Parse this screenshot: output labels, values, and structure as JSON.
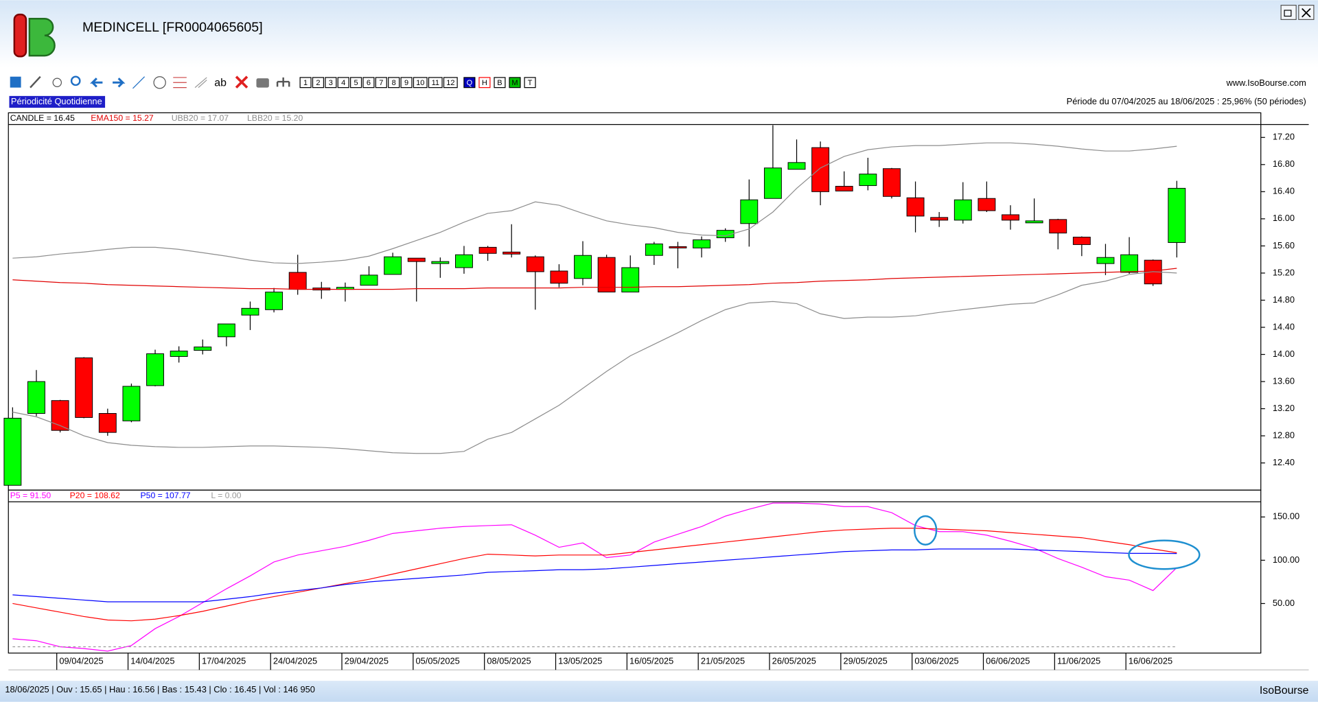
{
  "window": {
    "title": "MEDINCELL [FR0004065605]",
    "site": "www.IsoBourse.com",
    "periodicity": "Périodicité Quotidienne",
    "period": "Période du 07/04/2025 au 18/06/2025 : 25,96% (50 périodes)",
    "status": "18/06/2025 | Ouv : 15.65 | Hau : 16.56 | Bas : 15.43 | Clo : 16.45 | Vol : 146 950",
    "brand": "IsoBourse"
  },
  "toolbar": {
    "number_buttons": [
      "1",
      "2",
      "3",
      "4",
      "5",
      "6",
      "7",
      "8",
      "9",
      "10",
      "11",
      "12"
    ],
    "letter_buttons": [
      "Q",
      "H",
      "B",
      "M",
      "T"
    ]
  },
  "chart_data": [
    {
      "type": "candlestick",
      "ylim": [
        12.0,
        17.39
      ],
      "grid": false,
      "axis_side": "right",
      "yticks": [
        {
          "value": 12.4,
          "label": "12.40"
        },
        {
          "value": 12.8,
          "label": "12.80"
        },
        {
          "value": 13.2,
          "label": "13.20"
        },
        {
          "value": 13.6,
          "label": "13.60"
        },
        {
          "value": 14.0,
          "label": "14.00"
        },
        {
          "value": 14.4,
          "label": "14.40"
        },
        {
          "value": 14.8,
          "label": "14.80"
        },
        {
          "value": 15.2,
          "label": "15.20"
        },
        {
          "value": 15.6,
          "label": "15.60"
        },
        {
          "value": 16.0,
          "label": "16.00"
        },
        {
          "value": 16.4,
          "label": "16.40"
        },
        {
          "value": 16.8,
          "label": "16.80"
        },
        {
          "value": 17.2,
          "label": "17.20"
        }
      ],
      "series": [
        {
          "name": "CANDLE = 16.45",
          "type": "candlestick",
          "color": "#000000",
          "up_color": "#00ff00",
          "down_color": "#ff0000",
          "open": [
            12.07,
            13.13,
            13.32,
            13.95,
            13.13,
            13.02,
            13.54,
            13.97,
            14.06,
            14.26,
            14.58,
            14.66,
            15.21,
            14.98,
            14.96,
            15.02,
            15.18,
            15.42,
            15.34,
            15.28,
            15.58,
            15.51,
            15.44,
            15.23,
            15.12,
            15.43,
            14.92,
            15.46,
            15.59,
            15.57,
            15.72,
            15.93,
            16.3,
            16.73,
            17.05,
            16.48,
            16.49,
            16.74,
            16.31,
            16.02,
            15.98,
            16.3,
            16.06,
            15.94,
            15.99,
            15.73,
            15.34,
            15.21,
            15.39,
            15.65
          ],
          "high": [
            13.22,
            13.77,
            13.33,
            13.96,
            13.2,
            13.57,
            14.07,
            14.12,
            14.22,
            14.45,
            14.78,
            14.98,
            15.47,
            15.07,
            15.06,
            15.3,
            15.5,
            15.42,
            15.43,
            15.6,
            15.6,
            15.92,
            15.46,
            15.33,
            15.67,
            15.47,
            15.46,
            15.66,
            15.66,
            15.74,
            15.86,
            16.58,
            17.38,
            17.17,
            17.14,
            16.7,
            16.9,
            16.75,
            16.55,
            16.1,
            16.54,
            16.55,
            16.2,
            16.3,
            16.0,
            15.74,
            15.63,
            15.73,
            15.4,
            16.56
          ],
          "low": [
            12.07,
            13.09,
            12.85,
            13.06,
            12.8,
            13.0,
            13.53,
            13.88,
            14.0,
            14.12,
            14.36,
            14.62,
            14.88,
            14.82,
            14.78,
            15.02,
            15.18,
            14.78,
            15.13,
            15.19,
            15.38,
            15.43,
            14.66,
            14.99,
            15.02,
            14.92,
            14.92,
            15.32,
            15.27,
            15.43,
            15.66,
            15.59,
            16.3,
            16.73,
            16.2,
            16.41,
            16.42,
            16.3,
            15.8,
            15.88,
            15.93,
            16.1,
            15.84,
            15.94,
            15.55,
            15.45,
            15.17,
            15.19,
            15.01,
            15.43
          ],
          "close": [
            13.06,
            13.6,
            12.88,
            13.07,
            12.85,
            13.53,
            14.01,
            14.05,
            14.11,
            14.45,
            14.68,
            14.92,
            14.96,
            14.95,
            14.99,
            15.17,
            15.44,
            15.37,
            15.37,
            15.47,
            15.49,
            15.48,
            15.22,
            15.05,
            15.46,
            14.92,
            15.28,
            15.63,
            15.57,
            15.69,
            15.83,
            16.28,
            16.75,
            16.83,
            16.4,
            16.41,
            16.66,
            16.33,
            16.04,
            15.98,
            16.28,
            16.12,
            15.98,
            15.97,
            15.79,
            15.62,
            15.43,
            15.47,
            15.04,
            16.45
          ]
        },
        {
          "name": "EMA150 = 15.27",
          "color": "#e00000",
          "values": [
            15.1,
            15.08,
            15.06,
            15.05,
            15.03,
            15.02,
            15.01,
            15.0,
            14.99,
            14.98,
            14.97,
            14.97,
            14.96,
            14.96,
            14.96,
            14.96,
            14.96,
            14.97,
            14.97,
            14.97,
            14.98,
            14.98,
            14.98,
            14.98,
            14.99,
            14.99,
            14.99,
            15.0,
            15.0,
            15.01,
            15.02,
            15.03,
            15.05,
            15.06,
            15.08,
            15.09,
            15.1,
            15.12,
            15.13,
            15.14,
            15.15,
            15.16,
            15.17,
            15.18,
            15.19,
            15.2,
            15.21,
            15.22,
            15.23,
            15.27
          ]
        },
        {
          "name": "UBB20 = 17.07",
          "color": "#8c8c8c",
          "values": [
            15.42,
            15.44,
            15.48,
            15.51,
            15.55,
            15.58,
            15.58,
            15.55,
            15.5,
            15.45,
            15.39,
            15.35,
            15.34,
            15.36,
            15.39,
            15.45,
            15.56,
            15.68,
            15.8,
            15.95,
            16.08,
            16.12,
            16.25,
            16.2,
            16.08,
            15.97,
            15.91,
            15.87,
            15.8,
            15.76,
            15.75,
            15.85,
            16.1,
            16.45,
            16.75,
            16.92,
            17.02,
            17.06,
            17.08,
            17.08,
            17.1,
            17.12,
            17.12,
            17.1,
            17.07,
            17.03,
            17.0,
            17.0,
            17.03,
            17.07
          ]
        },
        {
          "name": "LBB20 = 15.20",
          "color": "#8c8c8c",
          "values": [
            13.15,
            13.08,
            12.95,
            12.8,
            12.7,
            12.66,
            12.64,
            12.63,
            12.63,
            12.64,
            12.65,
            12.65,
            12.64,
            12.63,
            12.61,
            12.58,
            12.55,
            12.54,
            12.54,
            12.57,
            12.75,
            12.85,
            13.05,
            13.25,
            13.5,
            13.75,
            13.98,
            14.15,
            14.32,
            14.5,
            14.66,
            14.76,
            14.78,
            14.75,
            14.6,
            14.53,
            14.55,
            14.55,
            14.57,
            14.62,
            14.66,
            14.7,
            14.74,
            14.76,
            14.88,
            15.02,
            15.08,
            15.18,
            15.22,
            15.2
          ]
        }
      ]
    },
    {
      "type": "line",
      "ylim": [
        -6.3,
        167.5
      ],
      "grid": false,
      "axis_side": "right",
      "yticks": [
        {
          "value": 50,
          "label": "50.00"
        },
        {
          "value": 100,
          "label": "100.00"
        },
        {
          "value": 150,
          "label": "150.00"
        }
      ],
      "categories": [
        null,
        null,
        "09/04/2025",
        null,
        null,
        "14/04/2025",
        null,
        null,
        "17/04/2025",
        null,
        null,
        "24/04/2025",
        null,
        null,
        "29/04/2025",
        null,
        null,
        "05/05/2025",
        null,
        null,
        "08/05/2025",
        null,
        null,
        "13/05/2025",
        null,
        null,
        "16/05/2025",
        null,
        null,
        "21/05/2025",
        null,
        null,
        "26/05/2025",
        null,
        null,
        "29/05/2025",
        null,
        null,
        "03/06/2025",
        null,
        null,
        "06/06/2025",
        null,
        null,
        "11/06/2025",
        null,
        null,
        "16/06/2025",
        null,
        null
      ],
      "series": [
        {
          "name": "P5 = 91.50",
          "color": "#ff00ff",
          "values": [
            9.2,
            7,
            0,
            -2,
            -5,
            1.5,
            21,
            35,
            51,
            67,
            82,
            98,
            106,
            111,
            116,
            123,
            131,
            134,
            137,
            139,
            140,
            141,
            129,
            115,
            120,
            103,
            106,
            121,
            130,
            139,
            151,
            159,
            166,
            166,
            165,
            162,
            162,
            155,
            140,
            133,
            133,
            129,
            122,
            114,
            102,
            92,
            81,
            77,
            65,
            91.5
          ]
        },
        {
          "name": "P20 = 108.62",
          "color": "#ff0000",
          "values": [
            50,
            45,
            40,
            35,
            31,
            30,
            32,
            36,
            41,
            47,
            53,
            58,
            63,
            68,
            73,
            78,
            84,
            90,
            96,
            102,
            107,
            106,
            105,
            106,
            106,
            106,
            109,
            112,
            115,
            118,
            121,
            124,
            127,
            130,
            133,
            135,
            136,
            137,
            137,
            136,
            135,
            134,
            132,
            130,
            128,
            126,
            122,
            118,
            113,
            108.62
          ]
        },
        {
          "name": "P50 = 107.77",
          "color": "#0000ff",
          "values": [
            60,
            58,
            56,
            54,
            52,
            52,
            52,
            52,
            52,
            55,
            58,
            62,
            65,
            68,
            72,
            75,
            77,
            79,
            81,
            83,
            86,
            87,
            88,
            89,
            89,
            90,
            92,
            94,
            96,
            98,
            100,
            102,
            104,
            106,
            108,
            110,
            111,
            112,
            112,
            113,
            113,
            113,
            113,
            112,
            111,
            110,
            109,
            108,
            108,
            107.77
          ]
        },
        {
          "name": "L = 0.00",
          "color": "#9a9a9a",
          "dashed": true,
          "values": [
            0,
            0,
            0,
            0,
            0,
            0,
            0,
            0,
            0,
            0,
            0,
            0,
            0,
            0,
            0,
            0,
            0,
            0,
            0,
            0,
            0,
            0,
            0,
            0,
            0,
            0,
            0,
            0,
            0,
            0,
            0,
            0,
            0,
            0,
            0,
            0,
            0,
            0,
            0,
            0,
            0,
            0,
            0,
            0,
            0,
            0,
            0,
            0,
            0,
            0
          ]
        }
      ]
    }
  ]
}
